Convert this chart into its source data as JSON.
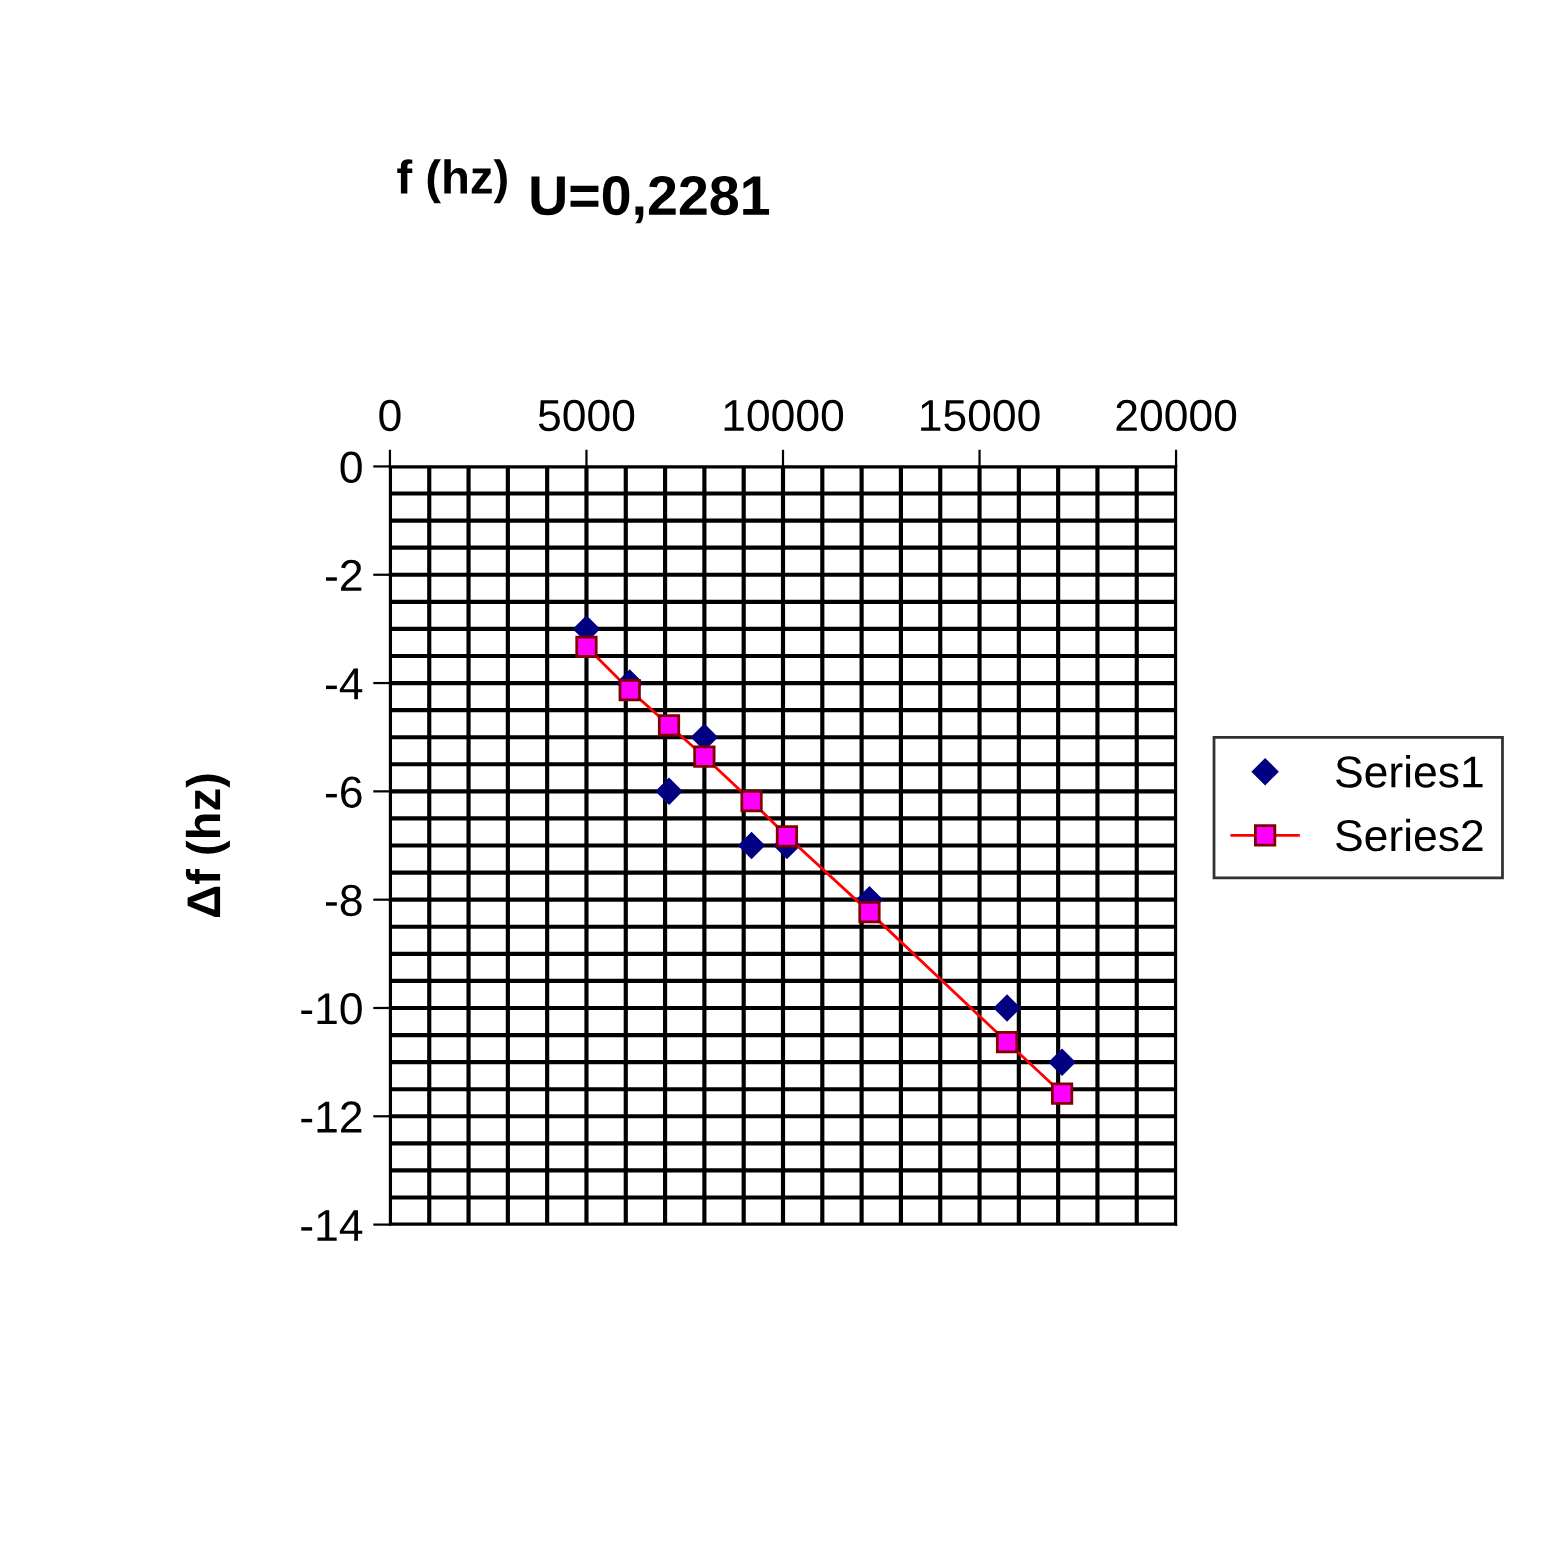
{
  "chart_data": {
    "type": "scatter",
    "title": "U=0,2281",
    "xlabel": "f (hz)",
    "ylabel": "Δf (hz)",
    "xlim": [
      0,
      20000
    ],
    "xticks": [
      0,
      5000,
      10000,
      15000,
      20000
    ],
    "ylim": [
      -14,
      0
    ],
    "yticks": [
      -14,
      -12,
      -10,
      -8,
      -6,
      -4,
      -2,
      0
    ],
    "grid": true,
    "legend": "right",
    "series": [
      {
        "name": "Series1",
        "marker": "diamond",
        "color": "#000080",
        "x": [
          5000,
          6100,
          7100,
          8000,
          9200,
          10100,
          12200,
          15700,
          17100
        ],
        "values": [
          -3,
          -4,
          -6,
          -5,
          -7,
          -7,
          -8,
          -10,
          -11
        ]
      },
      {
        "name": "Series2",
        "type": "line",
        "marker": "square",
        "color": "#ff0000",
        "x": [
          5000,
          6100,
          7100,
          8000,
          9200,
          10100,
          12200,
          15700,
          17100
        ],
        "values": [
          -3.33,
          -4.13,
          -4.78,
          -5.36,
          -6.18,
          -6.83,
          -8.23,
          -10.63,
          -11.58
        ]
      }
    ]
  }
}
